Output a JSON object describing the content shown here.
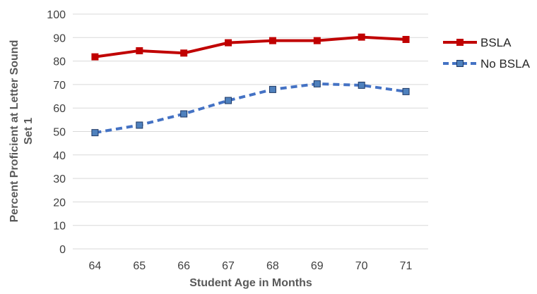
{
  "chart_data": {
    "type": "line",
    "title": "",
    "xlabel": "Student Age in Months",
    "ylabel_lines": [
      "Percent Proficient at Letter Sound",
      "Set 1"
    ],
    "x": [
      "64",
      "65",
      "66",
      "67",
      "68",
      "69",
      "70",
      "71"
    ],
    "y_ticks": [
      "0",
      "10",
      "20",
      "30",
      "40",
      "50",
      "60",
      "70",
      "80",
      "90",
      "100"
    ],
    "ylim": [
      0,
      100
    ],
    "grid": true,
    "legend": "right",
    "series": [
      {
        "name": "BSLA",
        "values": [
          81.8,
          84.4,
          83.4,
          87.8,
          88.7,
          88.7,
          90.2,
          89.2
        ],
        "color": "#c00000",
        "line_style": "solid",
        "marker": "square",
        "marker_fill": "#c00000"
      },
      {
        "name": "No BSLA",
        "values": [
          49.5,
          52.7,
          57.5,
          63.2,
          67.9,
          70.3,
          69.7,
          67.0
        ],
        "color": "#4472c4",
        "line_style": "dashed",
        "marker": "square",
        "marker_fill": "#4f81bd"
      }
    ]
  }
}
